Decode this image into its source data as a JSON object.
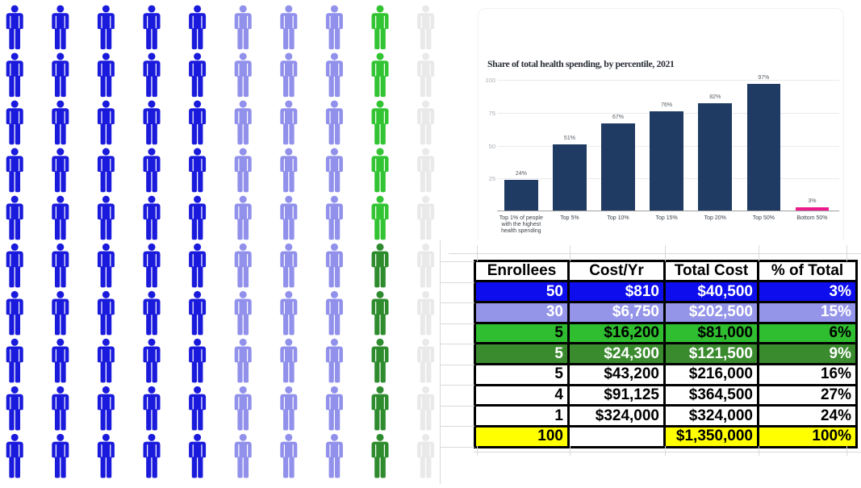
{
  "pictogram": {
    "type": "pictograph",
    "unit": "1 person per icon",
    "rows": 10,
    "cols": 10,
    "fill_order": "column-major",
    "segments": [
      {
        "name": "group-blue",
        "count": 50,
        "color": "#1a1adc"
      },
      {
        "name": "group-periwinkle",
        "count": 30,
        "color": "#9191ec"
      },
      {
        "name": "group-bright-green",
        "count": 5,
        "color": "#33c433"
      },
      {
        "name": "group-dark-green",
        "count": 5,
        "color": "#2e8b2e"
      },
      {
        "name": "group-gray",
        "count": 10,
        "color": "#e9e9e9"
      }
    ]
  },
  "chart_data": {
    "type": "bar",
    "title": "Share of total health spending, by percentile, 2021",
    "categories": [
      "Top 1% of people\nwith the highest\nhealth spending",
      "Top 5%",
      "Top 10%",
      "Top 15%",
      "Top 20%",
      "Top 50%",
      "Bottom 50%"
    ],
    "values": [
      24,
      51,
      67,
      76,
      82,
      97,
      3
    ],
    "value_labels": [
      "24%",
      "51%",
      "67%",
      "76%",
      "82%",
      "97%",
      "3%"
    ],
    "bar_colors": [
      "#1f3a63",
      "#1f3a63",
      "#1f3a63",
      "#1f3a63",
      "#1f3a63",
      "#1f3a63",
      "#ec1b8d"
    ],
    "yticks": [
      25,
      50,
      75,
      100
    ],
    "ylim": [
      0,
      100
    ],
    "grid": true,
    "legend": "none"
  },
  "table": {
    "headers": [
      "Enrollees",
      "Cost/Yr",
      "Total Cost",
      "% of Total"
    ],
    "rows": [
      {
        "cells": [
          "50",
          "$810",
          "$40,500",
          "3%"
        ],
        "bg": "#0d0dee",
        "fg": "#ffffff"
      },
      {
        "cells": [
          "30",
          "$6,750",
          "$202,500",
          "15%"
        ],
        "bg": "#9494e9",
        "fg": "#ffffff"
      },
      {
        "cells": [
          "5",
          "$16,200",
          "$81,000",
          "6%"
        ],
        "bg": "#2fbe2f",
        "fg": "#000000"
      },
      {
        "cells": [
          "5",
          "$24,300",
          "$121,500",
          "9%"
        ],
        "bg": "#3a8a2e",
        "fg": "#ffffff"
      },
      {
        "cells": [
          "5",
          "$43,200",
          "$216,000",
          "16%"
        ],
        "bg": "#ffffff",
        "fg": "#000000"
      },
      {
        "cells": [
          "4",
          "$91,125",
          "$364,500",
          "27%"
        ],
        "bg": "#ffffff",
        "fg": "#000000"
      },
      {
        "cells": [
          "1",
          "$324,000",
          "$324,000",
          "24%"
        ],
        "bg": "#ffffff",
        "fg": "#000000"
      },
      {
        "cells": [
          "100",
          "",
          "$1,350,000",
          "100%"
        ],
        "bg": "#ffff00",
        "fg": "#000000",
        "cell_bgs": [
          null,
          "#ffffff",
          null,
          null
        ]
      }
    ]
  }
}
